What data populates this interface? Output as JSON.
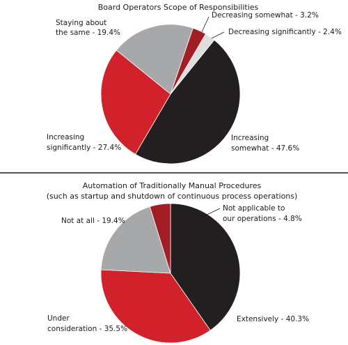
{
  "colors": {
    "black": "#231f20",
    "red": "#d1222b",
    "gray": "#a7a8aa",
    "dark_red": "#a31d24",
    "light_gray": "#dedede",
    "divider": "#1a1a1a"
  },
  "chart_data": [
    {
      "type": "pie",
      "title": "Board Operators Scope of  Responsibilities",
      "slices": [
        {
          "label": "Increasing somewhat - 47.6%",
          "value": 47.6,
          "color": "#231f20"
        },
        {
          "label": "Increasing significantly - 27.4%",
          "value": 27.4,
          "color": "#d1222b"
        },
        {
          "label": "Staying about the same - 19.4%",
          "value": 19.4,
          "color": "#a7a8aa"
        },
        {
          "label": "Decreasing somewhat - 3.2%",
          "value": 3.2,
          "color": "#a31d24"
        },
        {
          "label": "Decreasing significantly - 2.4%",
          "value": 2.4,
          "color": "#dedede"
        }
      ]
    },
    {
      "type": "pie",
      "title": "Automation of Traditionally Manual Procedures",
      "subtitle": "(such as startup and shutdown of continuous process operations)",
      "slices": [
        {
          "label": "Extensively - 40.3%",
          "value": 40.3,
          "color": "#231f20"
        },
        {
          "label": "Under consideration - 35.5%",
          "value": 35.5,
          "color": "#d1222b"
        },
        {
          "label": "Not at all - 19.4%",
          "value": 19.4,
          "color": "#a7a8aa"
        },
        {
          "label": "Not applicable to our operations - 4.8%",
          "value": 4.8,
          "color": "#a31d24"
        }
      ]
    }
  ],
  "labels": {
    "c1": {
      "title": "Board Operators Scope of  Responsibilities",
      "staying_l1": "Staying about",
      "staying_l2": "the same - 19.4%",
      "dec_somewhat": "Decreasing somewhat - 3.2%",
      "dec_signif": "Decreasing significantly - 2.4%",
      "inc_signif_l1": "Increasing",
      "inc_signif_l2": "significantly - 27.4%",
      "inc_somewhat_l1": "Increasing",
      "inc_somewhat_l2": "somewhat - 47.6%"
    },
    "c2": {
      "title": "Automation of Traditionally Manual Procedures",
      "subtitle": "(such as startup and shutdown of continuous process operations)",
      "not_at_all": "Not at all - 19.4%",
      "na_l1": "Not applicable to",
      "na_l2": "our operations - 4.8%",
      "under_l1": "Under",
      "under_l2": "consideration - 35.5%",
      "extensively": "Extensively - 40.3%"
    }
  }
}
